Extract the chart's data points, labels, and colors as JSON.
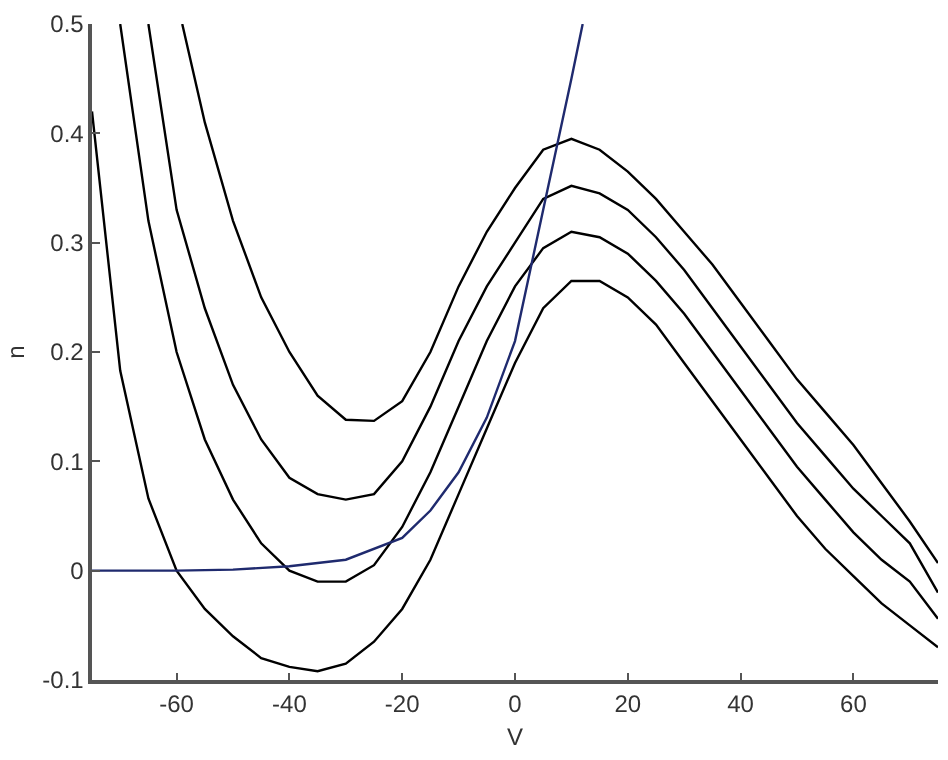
{
  "chart_data": {
    "type": "line",
    "xlabel": "V",
    "ylabel": "n",
    "x": [
      -75,
      -70,
      -65,
      -60,
      -55,
      -50,
      -45,
      -40,
      -35,
      -30,
      -25,
      -20,
      -15,
      -10,
      -5,
      0,
      5,
      10,
      15,
      20,
      25,
      30,
      35,
      40,
      45,
      50,
      55,
      60,
      65,
      70,
      75
    ],
    "series": [
      {
        "color": "#000000",
        "values": [
          0.42,
          0.183,
          0.066,
          0.0,
          -0.035,
          -0.06,
          -0.08,
          -0.088,
          -0.092,
          -0.085,
          -0.065,
          -0.035,
          0.01,
          0.07,
          0.13,
          0.19,
          0.24,
          0.265,
          0.265,
          0.25,
          0.225,
          0.19,
          0.155,
          0.12,
          0.085,
          0.05,
          0.02,
          -0.005,
          -0.03,
          -0.05,
          -0.07
        ]
      },
      {
        "color": "#000000",
        "values": [
          null,
          0.5,
          0.32,
          0.2,
          0.12,
          0.065,
          0.025,
          0.0,
          -0.01,
          -0.01,
          0.005,
          0.04,
          0.09,
          0.15,
          0.21,
          0.26,
          0.295,
          0.31,
          0.305,
          0.29,
          0.265,
          0.235,
          0.2,
          0.165,
          0.13,
          0.095,
          0.065,
          0.035,
          0.01,
          -0.01,
          -0.044
        ]
      },
      {
        "color": "#000000",
        "values": [
          null,
          null,
          0.5,
          0.33,
          0.24,
          0.17,
          0.12,
          0.085,
          0.07,
          0.065,
          0.07,
          0.1,
          0.15,
          0.21,
          0.26,
          0.3,
          0.34,
          0.352,
          0.345,
          0.33,
          0.305,
          0.275,
          0.24,
          0.205,
          0.17,
          0.135,
          0.105,
          0.075,
          0.05,
          0.025,
          -0.02
        ]
      },
      {
        "color": "#000000",
        "x": [
          -59,
          -55,
          -50,
          -45,
          -40,
          -35,
          -30,
          -25,
          -20,
          -15,
          -10,
          -5,
          0,
          5,
          10,
          15,
          20,
          25,
          30,
          35,
          40,
          45,
          50,
          55,
          60,
          65,
          70,
          75
        ],
        "values": [
          0.5,
          0.41,
          0.32,
          0.25,
          0.2,
          0.16,
          0.138,
          0.137,
          0.155,
          0.2,
          0.26,
          0.31,
          0.35,
          0.385,
          0.395,
          0.385,
          0.365,
          0.34,
          0.31,
          0.28,
          0.245,
          0.21,
          0.175,
          0.145,
          0.115,
          0.08,
          0.045,
          0.007
        ]
      },
      {
        "color": "#1f2a6e",
        "x": [
          -75,
          -60,
          -50,
          -40,
          -30,
          -20,
          -15,
          -10,
          -5,
          0,
          5,
          10,
          12
        ],
        "values": [
          0.0,
          0.0,
          0.001,
          0.004,
          0.01,
          0.03,
          0.055,
          0.09,
          0.14,
          0.21,
          0.33,
          0.45,
          0.5
        ]
      }
    ],
    "xlim": [
      -75,
      75
    ],
    "ylim": [
      -0.1,
      0.5
    ],
    "xticks": [
      -60,
      -40,
      -20,
      0,
      20,
      40,
      60
    ],
    "yticks": [
      -0.1,
      0,
      0.1,
      0.2,
      0.3,
      0.4,
      0.5
    ]
  }
}
